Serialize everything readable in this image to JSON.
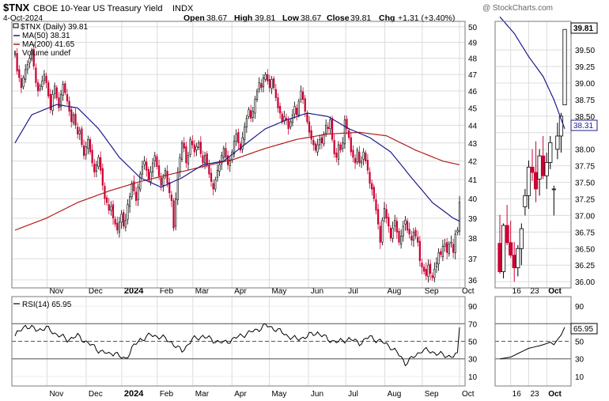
{
  "header": {
    "symbol": "$TNX",
    "name": "CBOE 10-Year US Treasury Yield",
    "exchange": "INDX",
    "date": "4-Oct-2024",
    "watermark": "@ StockCharts.com",
    "open_label": "Open",
    "open": "38.67",
    "high_label": "High",
    "high": "39.81",
    "low_label": "Low",
    "low": "38.67",
    "close_label": "Close",
    "close": "39.81",
    "chg_label": "Chg",
    "chg": "+1.31 (+3.40%)"
  },
  "legend": {
    "price": "$TNX (Daily) 39.81",
    "ma50": "MA(50) 38.31",
    "ma200": "MA(200) 41.65",
    "volume": "Volume undef"
  },
  "rsi_legend": "RSI(14) 65.95",
  "colors": {
    "up": "#000000",
    "down": "#cc0033",
    "ma50": "#1c1c8c",
    "ma200": "#b01c1c",
    "rsi": "#000000",
    "grid": "#dcdcdc",
    "frame": "#7a7a7a"
  },
  "chart_data": [
    {
      "type": "candlestick",
      "title": "$TNX CBOE 10-Year US Treasury Yield INDX",
      "x_labels": [
        "Nov",
        "Dec",
        "2024",
        "Feb",
        "Mar",
        "Apr",
        "May",
        "Jun",
        "Jul",
        "Aug",
        "Sep",
        "Oct"
      ],
      "y_ticks": [
        36,
        37,
        38,
        39,
        40,
        41,
        42,
        43,
        44,
        45,
        46,
        47,
        48,
        49,
        50
      ],
      "ylim": [
        35.7,
        50.3
      ],
      "y_scale": "log",
      "series": [
        {
          "name": "$TNX (Daily)",
          "values": [
            48.3,
            47.2,
            46.8,
            46.2,
            46.8,
            47.3,
            47.6,
            48.0,
            48.5,
            47.5,
            46.5,
            46.0,
            46.3,
            46.6,
            47.0,
            46.5,
            45.7,
            44.9,
            45.8,
            46.3,
            45.6,
            45.0,
            45.8,
            46.4,
            45.9,
            45.4,
            44.8,
            44.2,
            44.6,
            44.0,
            43.5,
            43.7,
            42.9,
            42.3,
            42.8,
            43.2,
            42.5,
            41.9,
            41.4,
            41.8,
            42.2,
            41.5,
            40.7,
            40.0,
            39.8,
            39.4,
            39.6,
            39.0,
            38.7,
            38.4,
            38.8,
            39.2,
            38.6,
            38.9,
            39.7,
            40.1,
            40.8,
            40.4,
            39.9,
            40.6,
            41.3,
            41.7,
            42.0,
            41.5,
            41.0,
            41.4,
            41.9,
            42.3,
            41.7,
            41.2,
            40.7,
            41.1,
            41.5,
            40.8,
            40.3,
            39.9,
            38.5,
            40.0,
            41.4,
            42.2,
            43.0,
            42.7,
            41.9,
            42.3,
            43.2,
            42.9,
            42.5,
            42.8,
            43.0,
            42.4,
            41.9,
            42.3,
            41.8,
            41.3,
            40.9,
            40.5,
            41.0,
            41.5,
            41.8,
            42.3,
            42.7,
            42.2,
            41.8,
            42.0,
            42.5,
            43.1,
            43.5,
            43.0,
            42.6,
            43.3,
            43.9,
            44.4,
            44.9,
            44.4,
            44.8,
            45.5,
            46.0,
            46.5,
            46.2,
            46.8,
            47.0,
            46.6,
            46.2,
            46.7,
            46.2,
            45.6,
            45.0,
            44.7,
            44.2,
            44.5,
            44.3,
            43.8,
            44.2,
            44.6,
            45.1,
            44.6,
            45.4,
            46.0,
            45.5,
            44.8,
            44.2,
            43.6,
            43.2,
            42.9,
            42.6,
            42.9,
            43.2,
            43.0,
            43.5,
            44.0,
            43.8,
            44.3,
            43.2,
            42.4,
            42.2,
            42.9,
            42.6,
            43.0,
            44.3,
            43.8,
            43.3,
            42.5,
            42.2,
            41.9,
            42.6,
            41.9,
            42.0,
            42.5,
            42.0,
            41.5,
            40.8,
            40.5,
            40.0,
            39.4,
            38.7,
            37.8,
            38.9,
            39.5,
            39.0,
            38.6,
            38.0,
            38.5,
            38.9,
            38.3,
            37.8,
            38.1,
            38.6,
            38.9,
            38.4,
            38.2,
            37.9,
            38.3,
            38.1,
            37.8,
            36.9,
            36.6,
            36.4,
            36.2,
            36.7,
            36.3,
            36.1,
            36.5,
            36.8,
            37.3,
            37.2,
            37.6,
            37.7,
            37.3,
            37.7,
            37.8,
            37.3,
            38.2,
            38.4,
            39.81
          ]
        },
        {
          "name": "MA(50)",
          "anchors": [
            [
              0,
              43.0
            ],
            [
              8,
              44.6
            ],
            [
              20,
              45.2
            ],
            [
              30,
              45.0
            ],
            [
              40,
              43.8
            ],
            [
              50,
              42.2
            ],
            [
              60,
              41.1
            ],
            [
              70,
              40.6
            ],
            [
              80,
              41.1
            ],
            [
              90,
              41.8
            ],
            [
              100,
              42.0
            ],
            [
              110,
              42.9
            ],
            [
              120,
              43.8
            ],
            [
              130,
              44.3
            ],
            [
              140,
              44.7
            ],
            [
              150,
              44.5
            ],
            [
              160,
              43.8
            ],
            [
              170,
              43.3
            ],
            [
              180,
              42.5
            ],
            [
              190,
              41.1
            ],
            [
              200,
              39.8
            ],
            [
              210,
              39.0
            ],
            [
              220,
              38.5
            ],
            [
              225,
              38.31
            ]
          ]
        },
        {
          "name": "MA(200)",
          "anchors": [
            [
              0,
              38.4
            ],
            [
              15,
              39.0
            ],
            [
              30,
              39.8
            ],
            [
              45,
              40.4
            ],
            [
              60,
              40.9
            ],
            [
              75,
              41.3
            ],
            [
              90,
              41.7
            ],
            [
              105,
              42.1
            ],
            [
              120,
              42.7
            ],
            [
              135,
              43.2
            ],
            [
              150,
              43.5
            ],
            [
              165,
              43.6
            ],
            [
              178,
              43.4
            ],
            [
              192,
              42.6
            ],
            [
              205,
              42.0
            ],
            [
              215,
              41.75
            ],
            [
              225,
              41.65
            ]
          ]
        }
      ]
    },
    {
      "type": "line",
      "title": "RSI(14)",
      "x_labels": [
        "Nov",
        "Dec",
        "2024",
        "Feb",
        "Mar",
        "Apr",
        "May",
        "Jun",
        "Jul",
        "Aug",
        "Sep",
        "Oct"
      ],
      "y_ticks": [
        10,
        30,
        50,
        70,
        90
      ],
      "ylim": [
        0,
        100
      ],
      "reference_lines": [
        30,
        50,
        70
      ],
      "series": [
        {
          "name": "RSI(14)",
          "anchors": [
            [
              0,
              56
            ],
            [
              5,
              68
            ],
            [
              10,
              63
            ],
            [
              15,
              65
            ],
            [
              20,
              58
            ],
            [
              25,
              52
            ],
            [
              30,
              56
            ],
            [
              35,
              48
            ],
            [
              40,
              40
            ],
            [
              45,
              35
            ],
            [
              48,
              38
            ],
            [
              50,
              32
            ],
            [
              53,
              30
            ],
            [
              56,
              42
            ],
            [
              60,
              52
            ],
            [
              65,
              57
            ],
            [
              70,
              55
            ],
            [
              75,
              49
            ],
            [
              78,
              42
            ],
            [
              80,
              39
            ],
            [
              85,
              52
            ],
            [
              90,
              56
            ],
            [
              95,
              51
            ],
            [
              100,
              48
            ],
            [
              105,
              53
            ],
            [
              110,
              58
            ],
            [
              115,
              62
            ],
            [
              120,
              68
            ],
            [
              125,
              64
            ],
            [
              130,
              57
            ],
            [
              135,
              52
            ],
            [
              140,
              56
            ],
            [
              145,
              60
            ],
            [
              150,
              52
            ],
            [
              155,
              49
            ],
            [
              160,
              53
            ],
            [
              165,
              48
            ],
            [
              170,
              55
            ],
            [
              175,
              50
            ],
            [
              180,
              44
            ],
            [
              185,
              32
            ],
            [
              187,
              25
            ],
            [
              190,
              30
            ],
            [
              195,
              40
            ],
            [
              200,
              38
            ],
            [
              205,
              34
            ],
            [
              210,
              33
            ],
            [
              215,
              36
            ],
            [
              218,
              45
            ],
            [
              222,
              55
            ],
            [
              225,
              65.95
            ]
          ]
        }
      ]
    },
    {
      "type": "candlestick",
      "title": "zoom",
      "x_labels": [
        "16",
        "23",
        "Oct"
      ],
      "y_ticks": [
        36.0,
        36.25,
        36.5,
        36.75,
        37.0,
        37.25,
        37.5,
        37.75,
        38.0,
        38.25,
        38.5,
        38.75,
        39.0,
        39.25,
        39.5,
        39.81
      ],
      "ylim": [
        35.93,
        39.92
      ],
      "series": [
        {
          "name": "$TNX (Daily)",
          "values": [
            [
              36.58,
              37.01,
              36.12,
              36.15
            ],
            [
              36.15,
              36.88,
              36.05,
              36.85
            ],
            [
              36.85,
              37.16,
              36.55,
              36.59
            ],
            [
              36.59,
              36.92,
              36.36,
              36.4
            ],
            [
              36.4,
              36.6,
              36.0,
              36.21
            ],
            [
              36.21,
              36.55,
              36.08,
              36.5
            ],
            [
              36.5,
              36.88,
              36.25,
              36.8
            ],
            [
              37.13,
              37.4,
              37.0,
              37.3
            ],
            [
              37.3,
              37.83,
              37.1,
              37.73
            ],
            [
              37.73,
              38.0,
              37.52,
              37.65
            ],
            [
              37.65,
              38.12,
              37.2,
              37.4
            ],
            [
              37.55,
              38.0,
              37.3,
              37.9
            ],
            [
              37.9,
              38.2,
              37.55,
              37.6
            ],
            [
              37.6,
              37.95,
              37.4,
              37.8
            ],
            [
              37.8,
              38.2,
              37.7,
              38.1
            ],
            [
              37.4,
              37.45,
              37.0,
              37.4
            ],
            [
              38.0,
              38.4,
              37.85,
              38.2
            ],
            [
              38.2,
              38.55,
              37.95,
              38.5
            ],
            [
              38.67,
              39.81,
              38.67,
              39.81
            ]
          ]
        },
        {
          "name": "MA(50)",
          "anchors": [
            [
              0,
              40.0
            ],
            [
              4,
              39.75
            ],
            [
              8,
              39.4
            ],
            [
              12,
              39.1
            ],
            [
              15,
              38.75
            ],
            [
              18,
              38.31
            ]
          ]
        },
        {
          "name": "RSI(14)",
          "anchors": [
            [
              0,
              30
            ],
            [
              3,
              32
            ],
            [
              6,
              38
            ],
            [
              8,
              42
            ],
            [
              10,
              44
            ],
            [
              12,
              46
            ],
            [
              14,
              49
            ],
            [
              15,
              46
            ],
            [
              16,
              52
            ],
            [
              17,
              57
            ],
            [
              18,
              65.95
            ]
          ]
        }
      ]
    }
  ],
  "zoom_labels": {
    "close": "39.81",
    "ma50": "38.31",
    "rsi": "65.95"
  }
}
